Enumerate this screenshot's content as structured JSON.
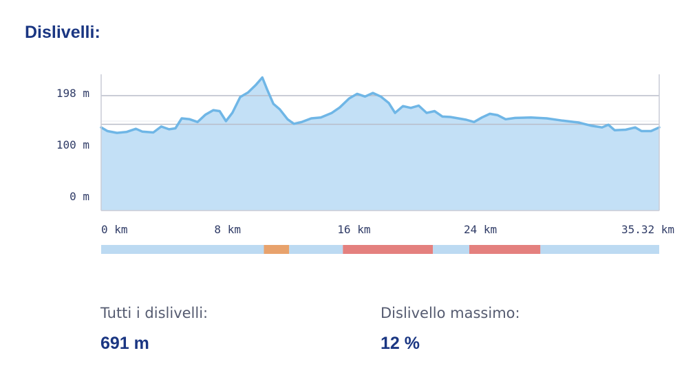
{
  "header": {
    "title": "Dislivelli:"
  },
  "chart_data": {
    "type": "area",
    "title": "",
    "xlabel": "",
    "ylabel": "",
    "xlim": [
      0,
      35.32
    ],
    "ylim": [
      -55,
      245
    ],
    "x_ticks": [
      {
        "value": 0,
        "label": "0 km"
      },
      {
        "value": 8,
        "label": "8 km"
      },
      {
        "value": 16,
        "label": "16 km"
      },
      {
        "value": 24,
        "label": "24 km"
      },
      {
        "value": 35.32,
        "label": "35.32 km"
      }
    ],
    "y_ticks": [
      {
        "value": 198,
        "label": "198 m"
      },
      {
        "value": 100,
        "label": "100 m"
      },
      {
        "value": 0,
        "label": "0 m"
      }
    ],
    "reference_lines": [
      198,
      135
    ],
    "series": [
      {
        "values": [
          [
            0,
            128
          ],
          [
            0.4,
            120
          ],
          [
            1.0,
            116
          ],
          [
            1.6,
            118
          ],
          [
            2.2,
            125
          ],
          [
            2.6,
            119
          ],
          [
            3.3,
            117
          ],
          [
            3.8,
            130
          ],
          [
            4.3,
            124
          ],
          [
            4.7,
            126
          ],
          [
            5.1,
            148
          ],
          [
            5.6,
            146
          ],
          [
            6.1,
            140
          ],
          [
            6.6,
            156
          ],
          [
            7.1,
            166
          ],
          [
            7.5,
            164
          ],
          [
            7.9,
            142
          ],
          [
            8.3,
            160
          ],
          [
            8.8,
            195
          ],
          [
            9.3,
            205
          ],
          [
            9.8,
            222
          ],
          [
            10.2,
            238
          ],
          [
            10.5,
            212
          ],
          [
            10.9,
            180
          ],
          [
            11.3,
            168
          ],
          [
            11.8,
            146
          ],
          [
            12.2,
            136
          ],
          [
            12.7,
            140
          ],
          [
            13.3,
            148
          ],
          [
            13.9,
            150
          ],
          [
            14.6,
            160
          ],
          [
            15.1,
            172
          ],
          [
            15.7,
            192
          ],
          [
            16.2,
            202
          ],
          [
            16.7,
            196
          ],
          [
            17.2,
            204
          ],
          [
            17.7,
            196
          ],
          [
            18.2,
            182
          ],
          [
            18.6,
            160
          ],
          [
            19.1,
            175
          ],
          [
            19.6,
            171
          ],
          [
            20.1,
            176
          ],
          [
            20.6,
            160
          ],
          [
            21.1,
            164
          ],
          [
            21.6,
            152
          ],
          [
            22.1,
            151
          ],
          [
            22.6,
            148
          ],
          [
            23.1,
            145
          ],
          [
            23.6,
            140
          ],
          [
            24.1,
            150
          ],
          [
            24.6,
            158
          ],
          [
            25.1,
            155
          ],
          [
            25.6,
            146
          ],
          [
            26.2,
            149
          ],
          [
            27.2,
            150
          ],
          [
            28.2,
            148
          ],
          [
            29.2,
            143
          ],
          [
            30.2,
            139
          ],
          [
            31.0,
            132
          ],
          [
            31.7,
            128
          ],
          [
            32.1,
            134
          ],
          [
            32.5,
            122
          ],
          [
            33.2,
            123
          ],
          [
            33.8,
            128
          ],
          [
            34.2,
            120
          ],
          [
            34.8,
            120
          ],
          [
            35.32,
            128
          ]
        ]
      }
    ],
    "gradient_bar": {
      "segments": [
        {
          "from": 0,
          "to": 10.3,
          "color": "#bcdaf2"
        },
        {
          "from": 10.3,
          "to": 11.9,
          "color": "#e8a26c"
        },
        {
          "from": 11.9,
          "to": 15.3,
          "color": "#bcdaf2"
        },
        {
          "from": 15.3,
          "to": 21.0,
          "color": "#e4807e"
        },
        {
          "from": 21.0,
          "to": 23.3,
          "color": "#bcdaf2"
        },
        {
          "from": 23.3,
          "to": 27.8,
          "color": "#e4807e"
        },
        {
          "from": 27.8,
          "to": 35.32,
          "color": "#bcdaf2"
        }
      ]
    },
    "colors": {
      "fill": "#c3e0f6",
      "line": "#6fb6e6",
      "grid": "#b8bcc8",
      "axis": "#c9ccd6"
    },
    "grid": true,
    "legend": "none"
  },
  "stats": [
    {
      "label": "Tutti i dislivelli:",
      "value": "691 m"
    },
    {
      "label": "Dislivello massimo:",
      "value": "12 %"
    }
  ]
}
